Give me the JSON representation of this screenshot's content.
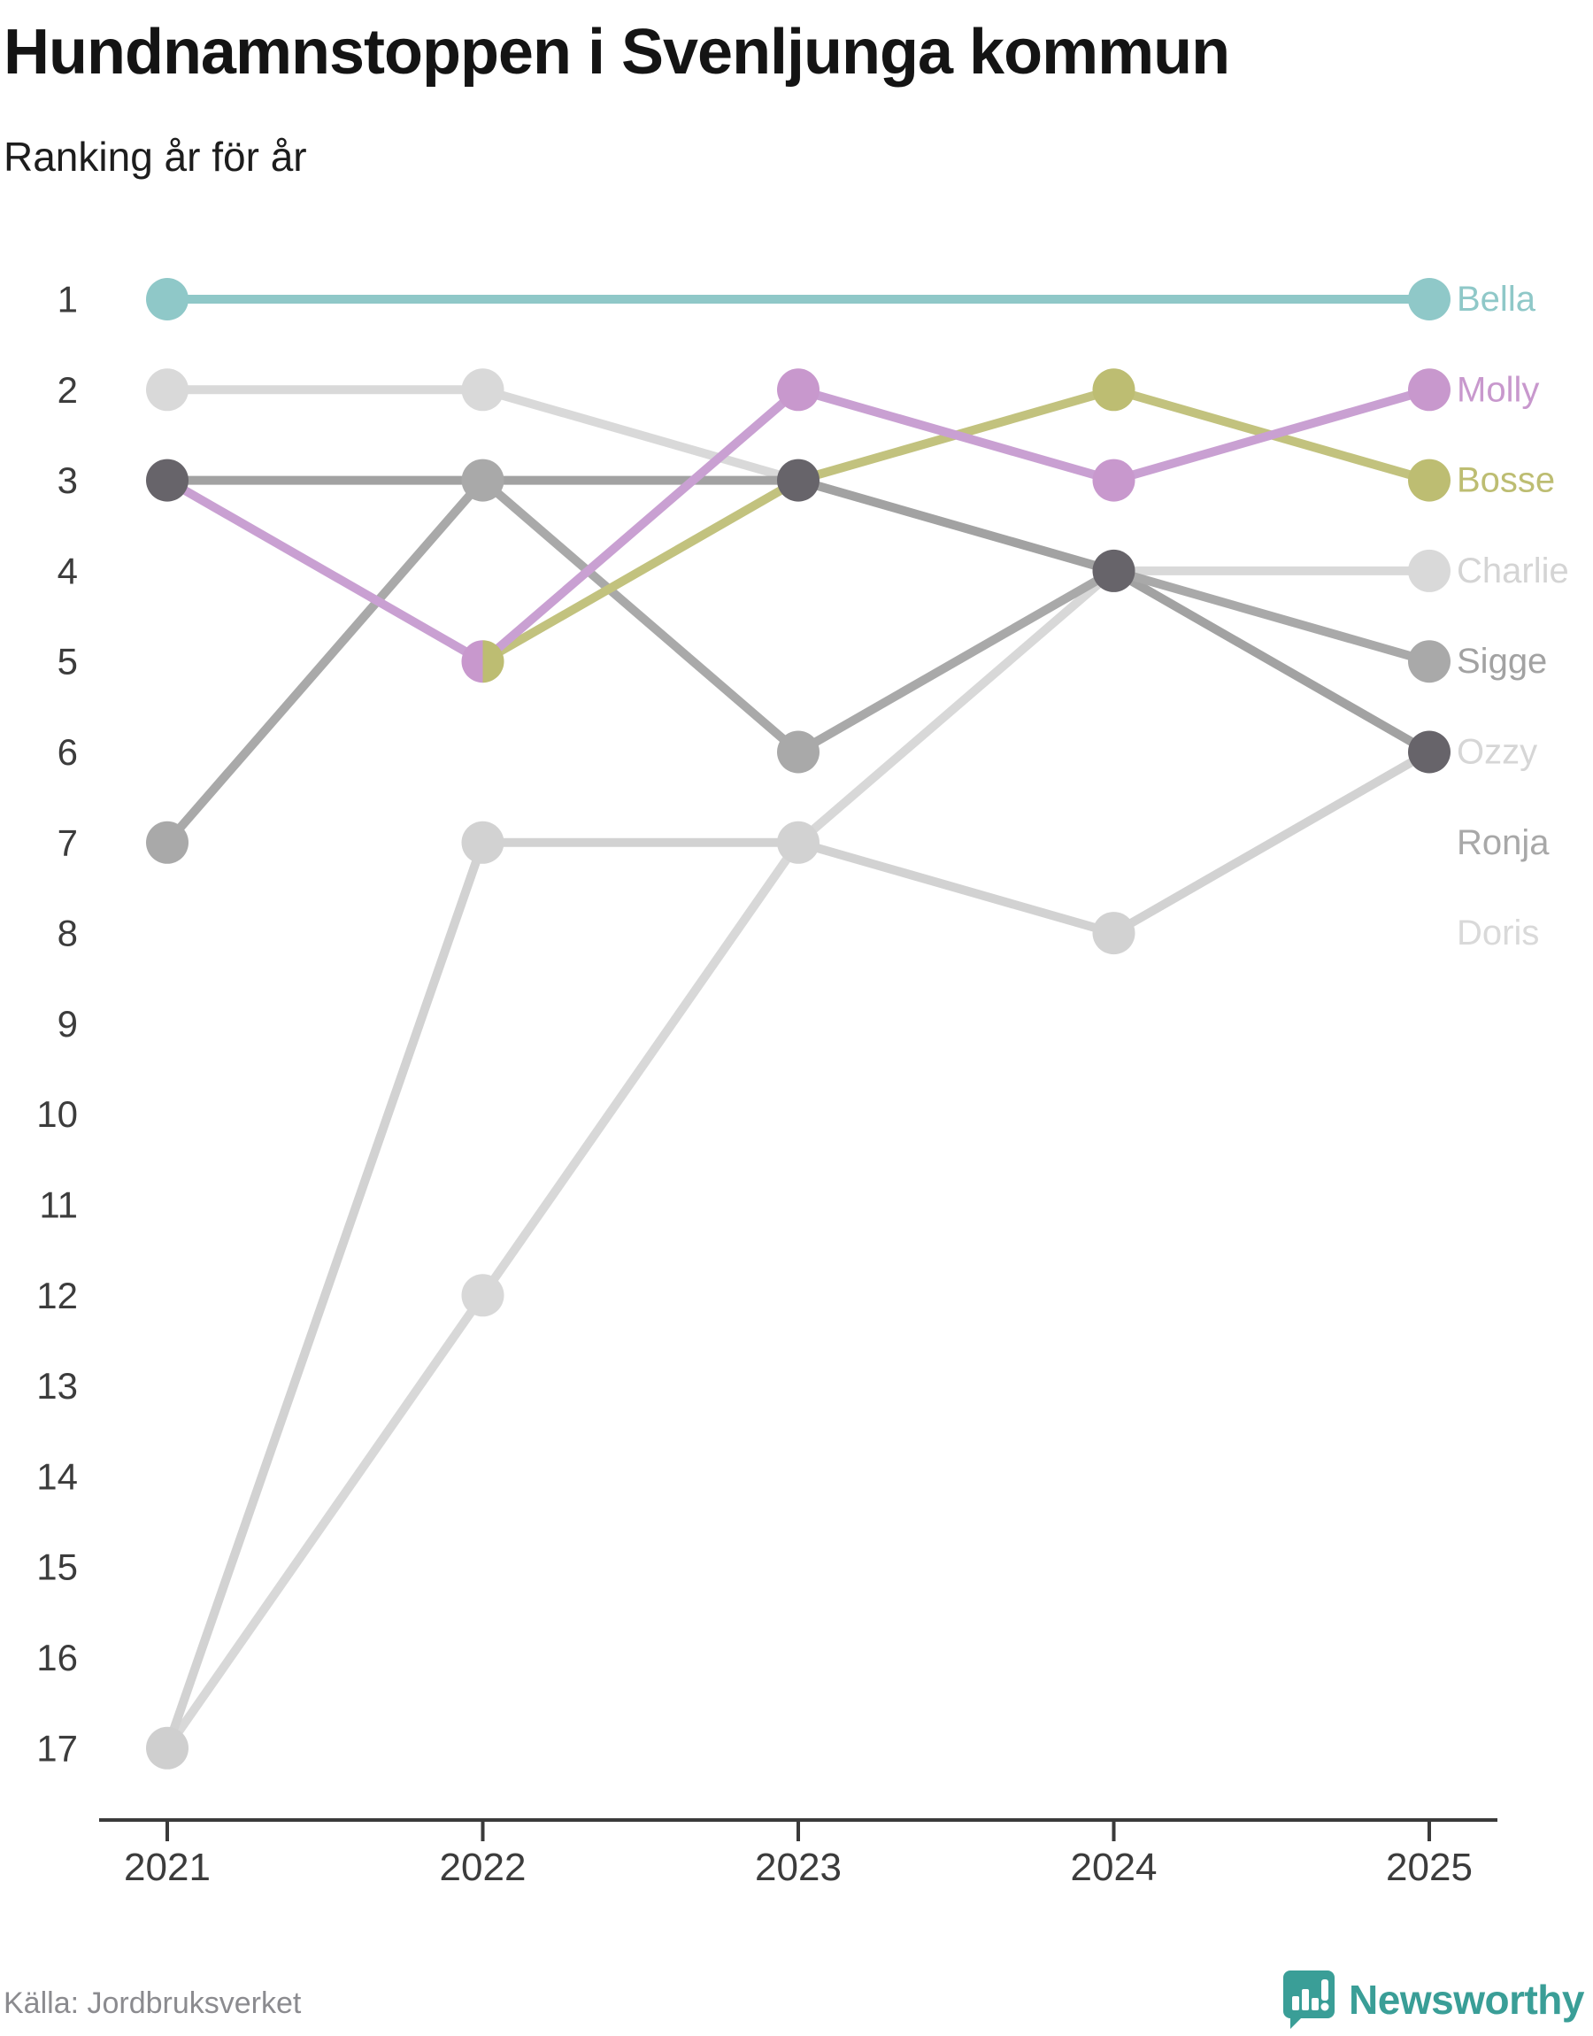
{
  "header": {
    "title": "Hundnamnstoppen i Svenljunga kommun",
    "subtitle": "Ranking år för år"
  },
  "footer": {
    "source": "Källa: Jordbruksverket",
    "brand": "Newsworthy",
    "brand_color": "#3a9e97"
  },
  "chart_data": {
    "type": "line",
    "subtype": "bump-ranking",
    "x_labels": [
      "2021",
      "2022",
      "2023",
      "2024",
      "2025"
    ],
    "rank_axis": {
      "min": 1,
      "max": 17,
      "ticks": [
        1,
        2,
        3,
        4,
        5,
        6,
        7,
        8,
        9,
        10,
        11,
        12,
        13,
        14,
        15,
        16,
        17
      ]
    },
    "grid": false,
    "legend_position": "right-of-last-point",
    "axis_color": "#3a3a3a",
    "tick_label_color": "#3c3c3c",
    "series": [
      {
        "name": "Doris",
        "ranks": [
          17,
          12,
          7,
          4,
          6
        ],
        "line_color": "#d8d8d8",
        "dot_color": "#d8d8d8",
        "label_color": "#d9d9d9",
        "label_slot": 8
      },
      {
        "name": "Ronja",
        "ranks": [
          17,
          7,
          7,
          8,
          6
        ],
        "line_color": "#d2d2d2",
        "dot_color": "#d2d2d2",
        "label_color": "#a8a8a8",
        "label_slot": 7
      },
      {
        "name": "Charlie",
        "ranks": [
          2,
          2,
          3,
          4,
          4
        ],
        "line_color": "#d9d9d9",
        "dot_color": "#d9d9d9",
        "label_color": "#d4d4d4",
        "label_slot": 4
      },
      {
        "name": "Ozzy",
        "ranks": [
          3,
          3,
          3,
          4,
          6
        ],
        "line_color": "#a2a2a2",
        "dot_color": "#67646a",
        "label_color": "#d6d6d6",
        "label_slot": 6
      },
      {
        "name": "Sigge",
        "ranks": [
          7,
          3,
          6,
          4,
          5
        ],
        "line_color": "#a9a9a9",
        "dot_color": "#a9a9a9",
        "label_color": "#a2a2a2",
        "label_slot": 5
      },
      {
        "name": "Bosse",
        "ranks": [
          null,
          5,
          3,
          2,
          3
        ],
        "line_color": "#c2c27e",
        "dot_color": "#bdbd72",
        "label_color": "#bdbd72",
        "label_slot": 3
      },
      {
        "name": "Molly",
        "ranks": [
          3,
          5,
          2,
          3,
          2
        ],
        "line_color": "#c9a0d2",
        "dot_color": "#c898cd",
        "label_color": "#c898cd",
        "label_slot": 2
      },
      {
        "name": "Bella",
        "ranks": [
          1,
          1,
          1,
          1,
          1
        ],
        "line_color": "#8fc8c8",
        "dot_color": "#8fc8c8",
        "label_color": "#8fc8c8",
        "label_slot": 1
      }
    ],
    "visible_dots": [
      {
        "year": "2021",
        "xi": 0,
        "rank": 1,
        "color": "#8fc8c8"
      },
      {
        "year": "2021",
        "xi": 0,
        "rank": 2,
        "color": "#d9d9d9"
      },
      {
        "year": "2021",
        "xi": 0,
        "rank": 3,
        "color": "#67646a"
      },
      {
        "year": "2021",
        "xi": 0,
        "rank": 7,
        "color": "#a9a9a9"
      },
      {
        "year": "2021",
        "xi": 0,
        "rank": 17,
        "color": "#cfcfcf"
      },
      {
        "year": "2022",
        "xi": 1,
        "rank": 2,
        "color": "#d9d9d9"
      },
      {
        "year": "2022",
        "xi": 1,
        "rank": 3,
        "color": "#a9a9a9"
      },
      {
        "year": "2022",
        "xi": 1,
        "rank": 5,
        "color_left": "#c898cd",
        "color_right": "#bdbd72",
        "note": "tie Molly/Bosse split dot"
      },
      {
        "year": "2022",
        "xi": 1,
        "rank": 7,
        "color": "#d2d2d2"
      },
      {
        "year": "2022",
        "xi": 1,
        "rank": 12,
        "color": "#d8d8d8"
      },
      {
        "year": "2023",
        "xi": 2,
        "rank": 2,
        "color": "#c898cd"
      },
      {
        "year": "2023",
        "xi": 2,
        "rank": 3,
        "color": "#67646a"
      },
      {
        "year": "2023",
        "xi": 2,
        "rank": 6,
        "color": "#a9a9a9"
      },
      {
        "year": "2023",
        "xi": 2,
        "rank": 7,
        "color": "#d2d2d2"
      },
      {
        "year": "2024",
        "xi": 3,
        "rank": 2,
        "color": "#bdbd72"
      },
      {
        "year": "2024",
        "xi": 3,
        "rank": 3,
        "color": "#c898cd"
      },
      {
        "year": "2024",
        "xi": 3,
        "rank": 4,
        "color": "#67646a"
      },
      {
        "year": "2024",
        "xi": 3,
        "rank": 8,
        "color": "#d2d2d2"
      },
      {
        "year": "2025",
        "xi": 4,
        "rank": 1,
        "color": "#8fc8c8"
      },
      {
        "year": "2025",
        "xi": 4,
        "rank": 2,
        "color": "#c898cd"
      },
      {
        "year": "2025",
        "xi": 4,
        "rank": 3,
        "color": "#bdbd72"
      },
      {
        "year": "2025",
        "xi": 4,
        "rank": 4,
        "color": "#d9d9d9"
      },
      {
        "year": "2025",
        "xi": 4,
        "rank": 5,
        "color": "#a9a9a9"
      },
      {
        "year": "2025",
        "xi": 4,
        "rank": 6,
        "color": "#67646a"
      }
    ]
  }
}
